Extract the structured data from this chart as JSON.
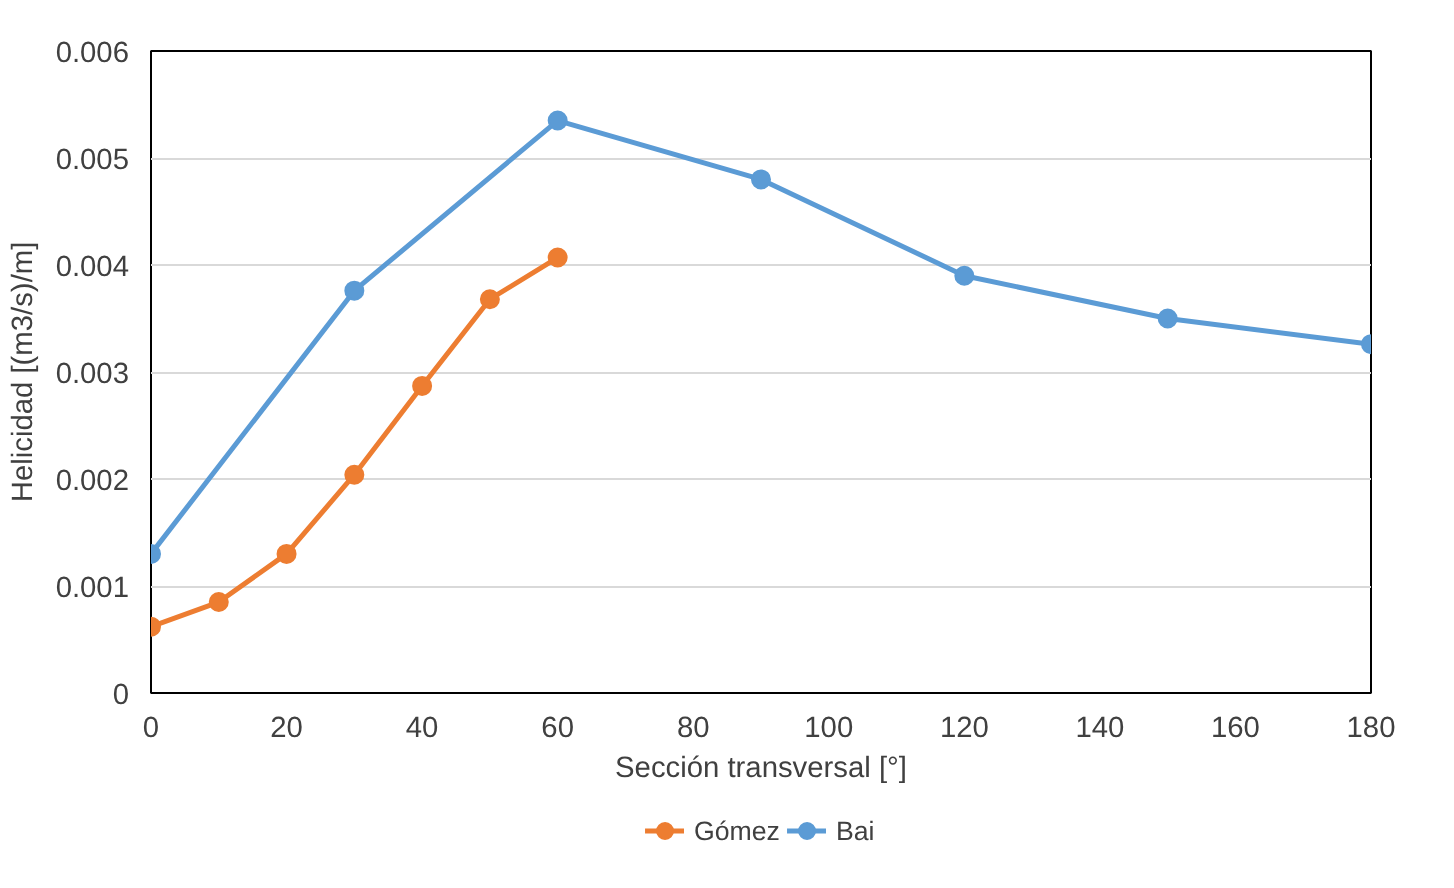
{
  "chart_data": {
    "type": "line",
    "xlabel": "Sección transversal [°]",
    "ylabel": "Helicidad [(m3/s)/m]",
    "xlim": [
      0,
      180
    ],
    "xticks": [
      0,
      20,
      40,
      60,
      80,
      100,
      120,
      140,
      160,
      180
    ],
    "ylim": [
      0,
      0.006
    ],
    "yticks": [
      {
        "value": 0,
        "label": "0"
      },
      {
        "value": 0.001,
        "label": "0.001"
      },
      {
        "value": 0.002,
        "label": "0.002"
      },
      {
        "value": 0.003,
        "label": "0.003"
      },
      {
        "value": 0.004,
        "label": "0.004"
      },
      {
        "value": 0.005,
        "label": "0.005"
      },
      {
        "value": 0.006,
        "label": "0.006"
      }
    ],
    "grid": "y",
    "legend": "bottom",
    "marker": "circle",
    "line_style": "solid",
    "series": [
      {
        "name": "Gómez",
        "color": "#ed7d31",
        "x": [
          0,
          10,
          20,
          30,
          40,
          50,
          60
        ],
        "values": [
          0.00062,
          0.00085,
          0.0013,
          0.00204,
          0.00287,
          0.00368,
          0.00407
        ]
      },
      {
        "name": "Bai",
        "color": "#5b9bd5",
        "x": [
          0,
          30,
          60,
          90,
          120,
          150,
          180
        ],
        "values": [
          0.0013,
          0.00376,
          0.00535,
          0.0048,
          0.0039,
          0.0035,
          0.00326
        ]
      }
    ]
  }
}
